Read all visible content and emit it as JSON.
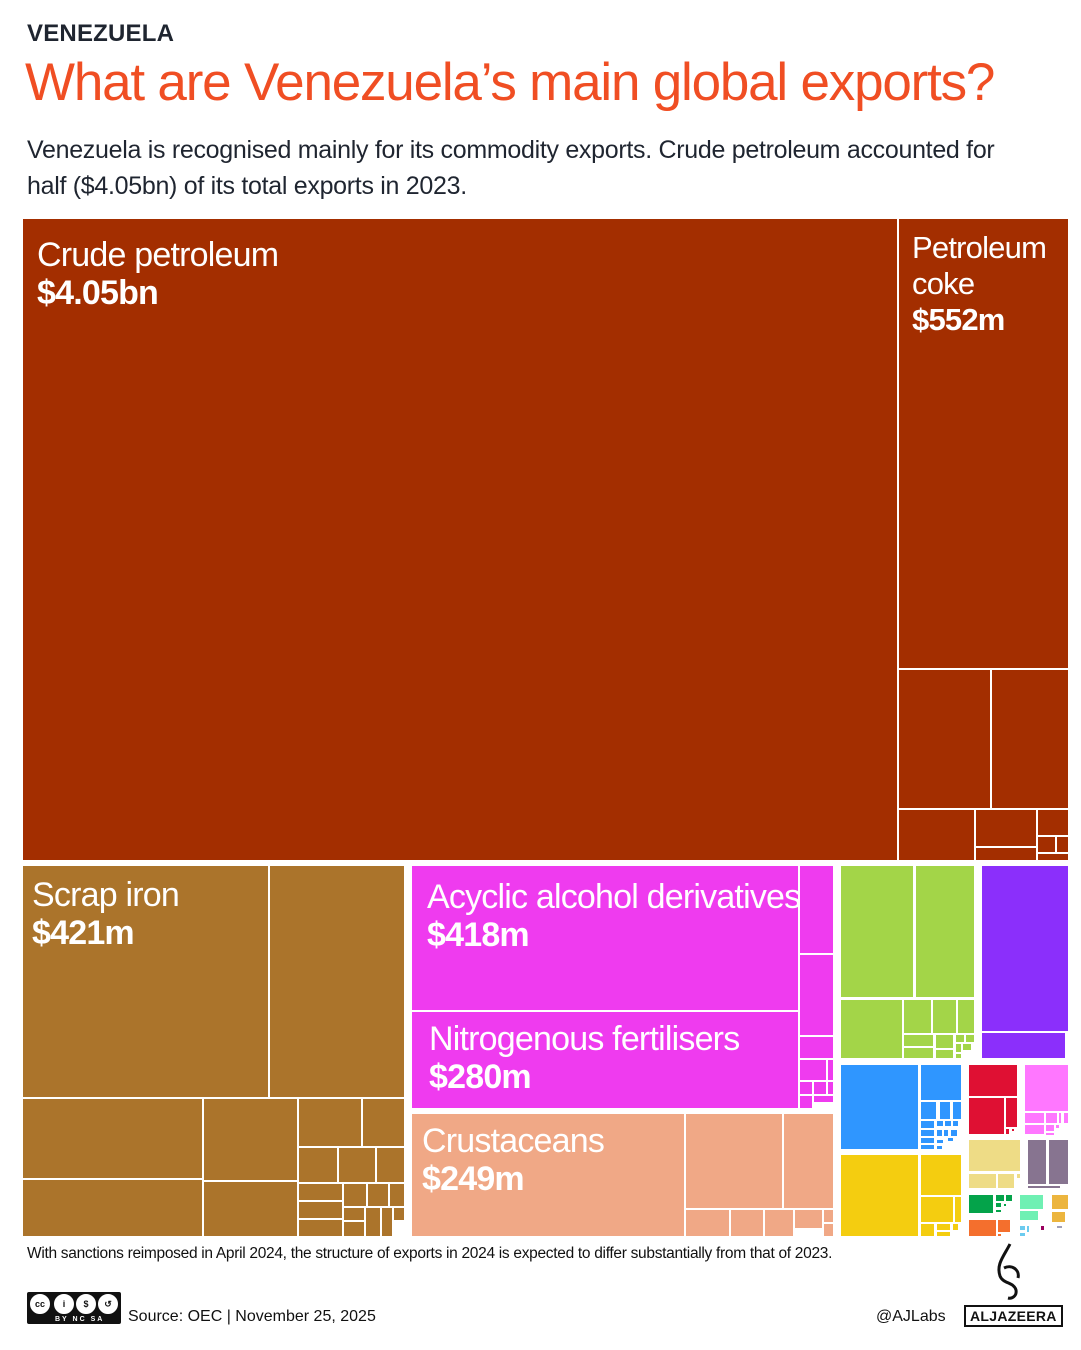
{
  "header": {
    "kicker": "VENEZUELA",
    "title": "What are Venezuela’s main global exports?",
    "subtitle": "Venezuela is recognised mainly for its commodity exports. Crude petroleum accounted for half ($4.05bn) of its total exports in 2023."
  },
  "chart_data": {
    "type": "treemap",
    "items": [
      {
        "label": "Crude petroleum",
        "value_label": "$4.05bn",
        "value_usd_m": 4050,
        "color": "#a32e00"
      },
      {
        "label": "Petroleum coke",
        "value_label": "$552m",
        "value_usd_m": 552,
        "color": "#a32e00"
      },
      {
        "label": "Scrap iron",
        "value_label": "$421m",
        "value_usd_m": 421,
        "color": "#ab742b"
      },
      {
        "label": "Acyclic alcohol derivatives",
        "value_label": "$418m",
        "value_usd_m": 418,
        "color": "#ef3bef"
      },
      {
        "label": "Nitrogenous fertilisers",
        "value_label": "$280m",
        "value_usd_m": 280,
        "color": "#ef3bef"
      },
      {
        "label": "Crustaceans",
        "value_label": "$249m",
        "value_usd_m": 249,
        "color": "#f0a886"
      }
    ],
    "group_colors": {
      "mineral": "#a32e00",
      "metals": "#ab742b",
      "chemicals": "#ef3bef",
      "animal": "#f0a886",
      "vegetable": "#a3d548",
      "purple": "#8b2ffb",
      "blue": "#2f96ff",
      "yellow": "#f4cd10",
      "red": "#df1033",
      "pink": "#ff77ff",
      "khaki": "#eedc86",
      "mauve": "#877490",
      "green": "#04a34a",
      "orange": "#f46f2d",
      "mint": "#6ff0b3",
      "gold": "#ecb53e",
      "cyan": "#6ccbef"
    }
  },
  "footer": {
    "note": "With sanctions reimposed in April 2024, the structure of exports in 2024 is expected to differ substantially from that of 2023.",
    "source": "Source:  OEC | November 25, 2025",
    "handle": "@AJLabs",
    "logo_text": "ALJAZEERA",
    "license": "BY NC SA"
  }
}
